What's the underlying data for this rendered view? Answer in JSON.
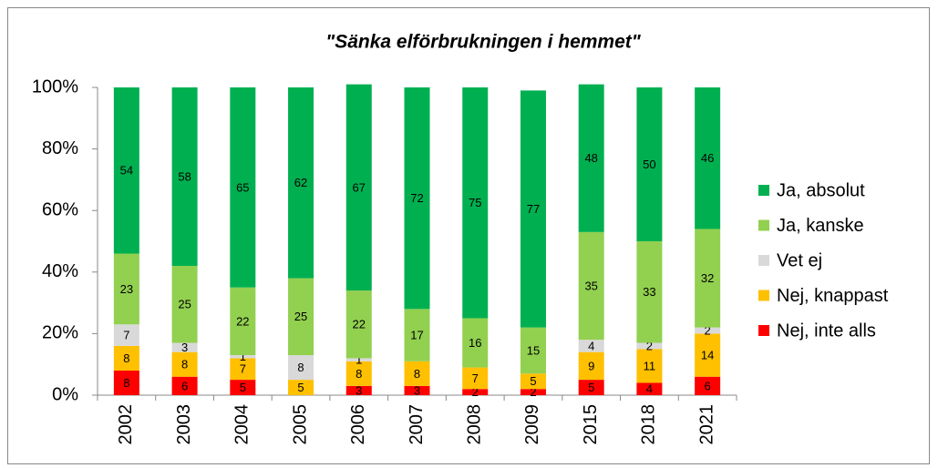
{
  "chart_data": {
    "type": "stacked_bar",
    "title": "\"Sänka elförbrukningen i hemmet\"",
    "categories": [
      "2002",
      "2003",
      "2004",
      "2005",
      "2006",
      "2007",
      "2008",
      "2009",
      "2015",
      "2018",
      "2021"
    ],
    "series": [
      {
        "name": "Nej, inte alls",
        "color": "#ff0000",
        "values": [
          8,
          6,
          5,
          null,
          3,
          3,
          2,
          2,
          5,
          4,
          6
        ]
      },
      {
        "name": "Nej, knappast",
        "color": "#ffc000",
        "values": [
          8,
          8,
          7,
          5,
          8,
          8,
          7,
          5,
          9,
          11,
          14
        ]
      },
      {
        "name": "Vet ej",
        "color": "#d9d9d9",
        "values": [
          7,
          3,
          1,
          8,
          1,
          null,
          null,
          null,
          4,
          2,
          2
        ]
      },
      {
        "name": "Ja, kanske",
        "color": "#92d050",
        "values": [
          23,
          25,
          22,
          25,
          22,
          17,
          16,
          15,
          35,
          33,
          32
        ]
      },
      {
        "name": "Ja, absolut",
        "color": "#00b050",
        "values": [
          54,
          58,
          65,
          62,
          67,
          72,
          75,
          77,
          48,
          50,
          46
        ]
      }
    ],
    "ylim": [
      0,
      100
    ],
    "yticks": [
      {
        "value": 0,
        "label": "0%"
      },
      {
        "value": 20,
        "label": "20%"
      },
      {
        "value": 40,
        "label": "40%"
      },
      {
        "value": 60,
        "label": "60%"
      },
      {
        "value": 80,
        "label": "80%"
      },
      {
        "value": 100,
        "label": "100%"
      }
    ],
    "legend": "right"
  }
}
